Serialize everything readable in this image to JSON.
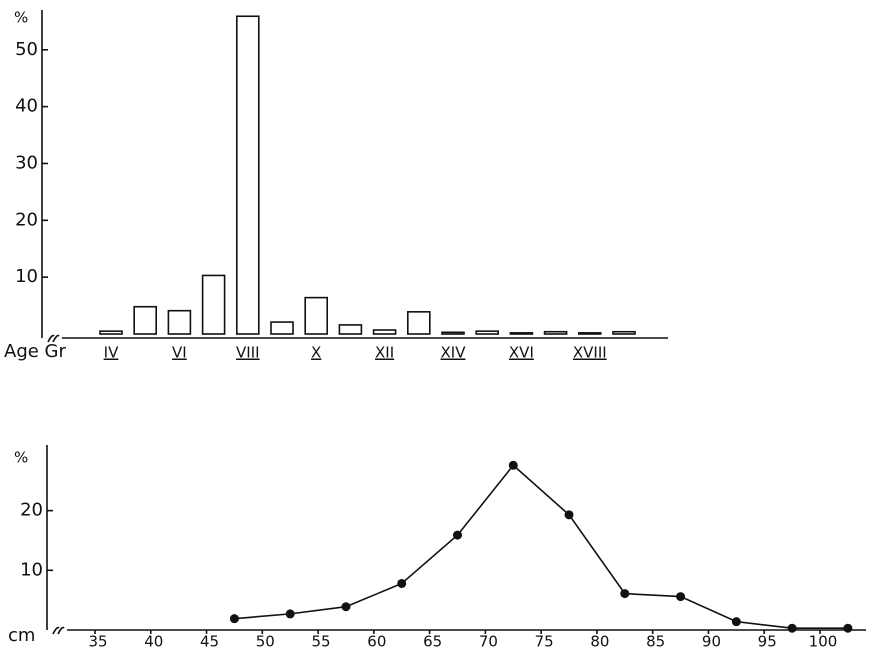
{
  "chart_data": [
    {
      "type": "bar",
      "y_label": "%",
      "x_label": "Age Gr",
      "categories": [
        "IV",
        null,
        "VI",
        null,
        "VIII",
        null,
        "X",
        null,
        "XII",
        null,
        "XIV",
        null,
        "XVI",
        null,
        "XVIII",
        null
      ],
      "values": [
        0.5,
        4.8,
        4.1,
        10.3,
        55.9,
        2.1,
        6.4,
        1.6,
        0.7,
        3.9,
        0.3,
        0.5,
        0.2,
        0.4,
        0.2,
        0.4
      ],
      "color": "#ffffff",
      "ylim": [
        0,
        57
      ],
      "yticks": [
        10,
        20,
        30,
        40,
        50
      ],
      "grid": false
    },
    {
      "type": "line",
      "y_label": "%",
      "x_label": "cm",
      "x": [
        47.5,
        52.5,
        57.5,
        62.5,
        67.5,
        72.5,
        77.5,
        82.5,
        87.5,
        92.5,
        97.5,
        102.5
      ],
      "values": [
        1.9,
        2.7,
        3.9,
        7.8,
        15.9,
        27.6,
        19.3,
        6.1,
        5.6,
        1.4,
        0.3,
        0.3
      ],
      "color": "#111111",
      "xlim": [
        31,
        104
      ],
      "xticks": [
        35,
        40,
        45,
        50,
        55,
        60,
        65,
        70,
        75,
        80,
        85,
        90,
        95,
        100
      ],
      "ylim": [
        0,
        31
      ],
      "yticks": [
        10,
        20
      ],
      "grid": false
    }
  ]
}
